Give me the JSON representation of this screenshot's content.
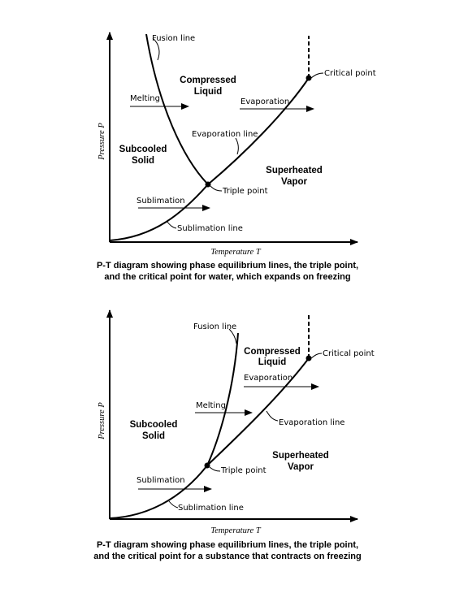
{
  "diagram1": {
    "fusion_line": "Fusion line",
    "compressed_liquid": [
      "Compressed",
      "Liquid"
    ],
    "melting": "Melting",
    "evaporation": "Evaporation",
    "critical_point": "Critical point",
    "evaporation_line": "Evaporation line",
    "subcooled_solid": [
      "Subcooled",
      "Solid"
    ],
    "superheated_vapor": [
      "Superheated",
      "Vapor"
    ],
    "triple_point": "Triple point",
    "sublimation": "Sublimation",
    "sublimation_line": "Sublimation line",
    "x_axis": "Temperature T",
    "y_axis": "Pressure P",
    "caption": [
      "P-T diagram showing phase equilibrium lines, the triple point,",
      "and the critical point for water, which expands on freezing"
    ]
  },
  "diagram2": {
    "fusion_line": "Fusion line",
    "compressed_liquid": [
      "Compressed",
      "Liquid"
    ],
    "critical_point": "Critical point",
    "evaporation": "Evaporation",
    "melting": "Melting",
    "evaporation_line": "Evaporation line",
    "subcooled_solid": [
      "Subcooled",
      "Solid"
    ],
    "superheated_vapor": [
      "Superheated",
      "Vapor"
    ],
    "triple_point": "Triple point",
    "sublimation": "Sublimation",
    "sublimation_line": "Sublimation line",
    "x_axis": "Temperature T",
    "y_axis": "Pressure P",
    "caption": [
      "P-T diagram showing phase equilibrium lines, the triple point,",
      "and the critical point for a substance that contracts on freezing"
    ]
  }
}
